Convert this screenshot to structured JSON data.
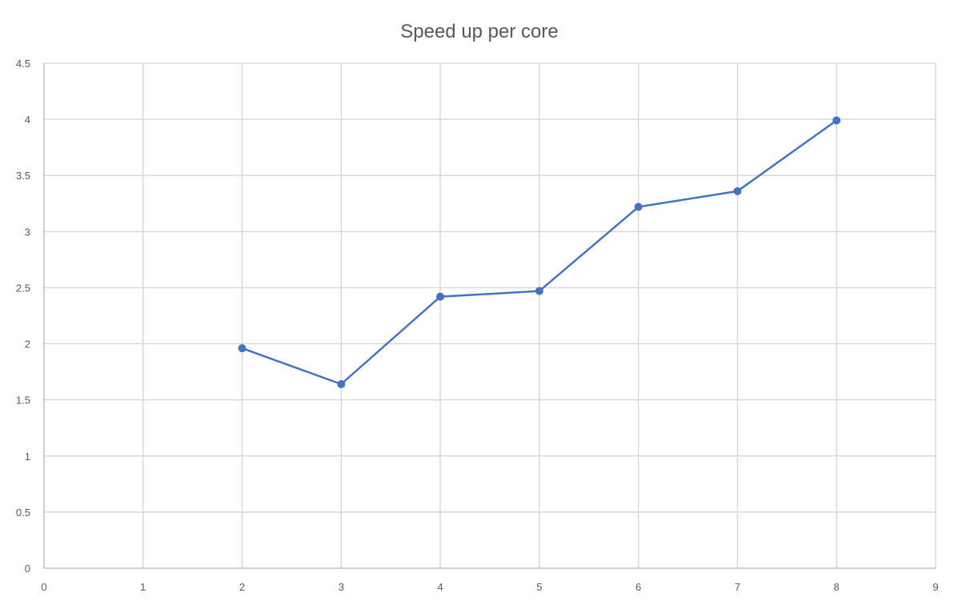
{
  "chart_data": {
    "type": "line",
    "title": "Speed up per core",
    "xlabel": "",
    "ylabel": "",
    "xlim": [
      0,
      9
    ],
    "ylim": [
      0,
      4.5
    ],
    "x_ticks": [
      "0",
      "1",
      "2",
      "3",
      "4",
      "5",
      "6",
      "7",
      "8",
      "9"
    ],
    "y_ticks": [
      "0",
      "0.5",
      "1",
      "1.5",
      "2",
      "2.5",
      "3",
      "3.5",
      "4",
      "4.5"
    ],
    "grid": true,
    "legend": "none",
    "series": [
      {
        "x": [
          2,
          3,
          4,
          5,
          6,
          7,
          8
        ],
        "y": [
          1.96,
          1.64,
          2.42,
          2.47,
          3.22,
          3.36,
          3.99
        ],
        "color": "#4472c4",
        "marker": "circle"
      }
    ]
  },
  "colors": {
    "series": "#4472c4",
    "grid": "#d9d9d9",
    "text": "#595959"
  }
}
